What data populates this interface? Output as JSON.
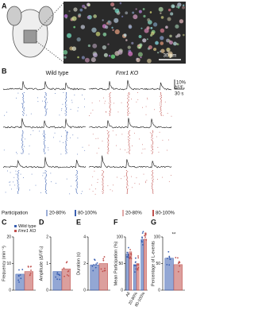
{
  "panel_labels": [
    "A",
    "B",
    "C",
    "D",
    "E",
    "F",
    "G"
  ],
  "panel_a": {
    "scale_bar": "30 µm"
  },
  "panel_b": {
    "groups": [
      "Wild type",
      "Fmr1 KO"
    ],
    "scale_y": "10%",
    "scale_y_unit": "ΔF/F₀",
    "scale_x": "30 s",
    "legend_title": "Participation",
    "legend_items": [
      "20-80%",
      "80-100%"
    ]
  },
  "charts": [
    {
      "type": "bar",
      "ylabel": "Frequency (min⁻¹)",
      "ylim": [
        0,
        20
      ],
      "yticks": [
        0,
        10,
        20
      ],
      "legend": true,
      "categories": [
        null
      ],
      "series": [
        {
          "name": "Wild type",
          "color": "#3a5fb0",
          "values": [
            6
          ]
        },
        {
          "name": "Fmr1 KO",
          "color": "#c0504d",
          "values": [
            7
          ]
        }
      ]
    },
    {
      "type": "bar",
      "ylabel": "Amplitude (ΔF/F₀)",
      "ylim": [
        0,
        2
      ],
      "yticks": [
        0,
        1,
        2
      ],
      "legend": false,
      "categories": [
        null
      ],
      "series": [
        {
          "name": "Wild type",
          "color": "#3a5fb0",
          "values": [
            0.7
          ]
        },
        {
          "name": "Fmr1 KO",
          "color": "#c0504d",
          "values": [
            0.8
          ]
        }
      ]
    },
    {
      "type": "bar",
      "ylabel": "Duration (s)",
      "ylim": [
        0,
        4
      ],
      "yticks": [
        0,
        2,
        4
      ],
      "legend": false,
      "categories": [
        null
      ],
      "series": [
        {
          "name": "Wild type",
          "color": "#3a5fb0",
          "values": [
            1.9
          ]
        },
        {
          "name": "Fmr1 KO",
          "color": "#c0504d",
          "values": [
            2
          ]
        }
      ]
    },
    {
      "type": "bar",
      "ylabel": "Mean Participation (%)",
      "ylim": [
        0,
        100
      ],
      "yticks": [
        0,
        50,
        100
      ],
      "legend": false,
      "categories": [
        "All",
        "20-80%",
        "80-100%"
      ],
      "series": [
        {
          "name": "Wild type",
          "color": "#3a5fb0",
          "values": [
            68,
            48,
            95
          ]
        },
        {
          "name": "Fmr1 KO",
          "color": "#c0504d",
          "values": [
            72,
            50,
            96
          ]
        }
      ]
    },
    {
      "type": "bar",
      "ylabel": "Percentage of L-events",
      "ylim": [
        0,
        100
      ],
      "yticks": [
        0,
        50,
        100
      ],
      "legend": false,
      "annotation": "**",
      "categories": [
        null
      ],
      "series": [
        {
          "name": "Wild type",
          "color": "#3a5fb0",
          "values": [
            60
          ]
        },
        {
          "name": "Fmr1 KO",
          "color": "#c0504d",
          "values": [
            48
          ]
        }
      ]
    }
  ]
}
